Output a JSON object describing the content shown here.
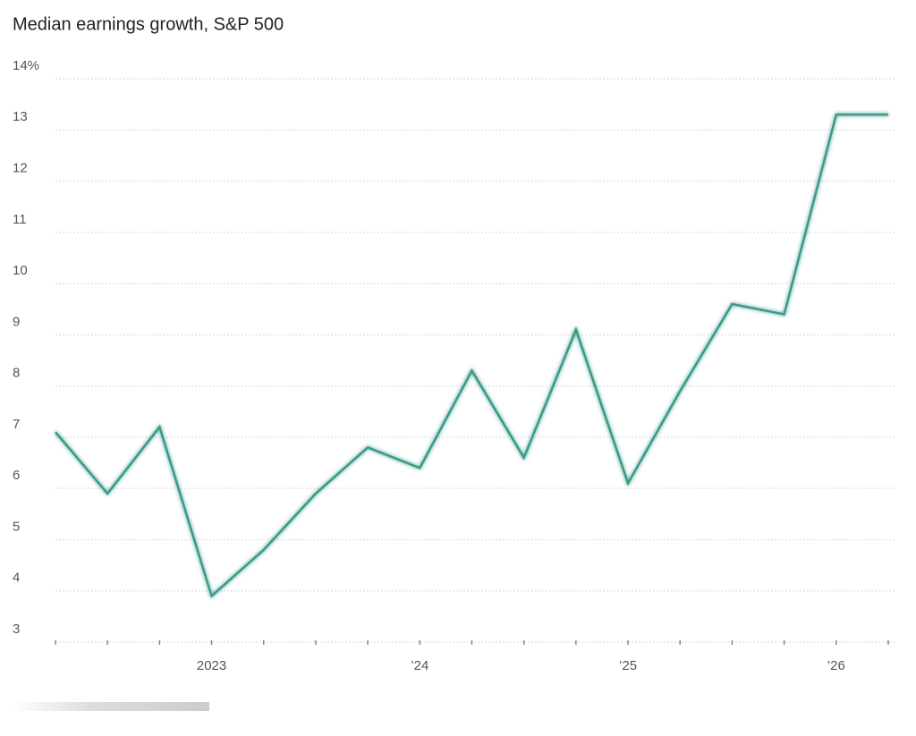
{
  "chart_data": {
    "type": "line",
    "title": "Median earnings growth, S&P 500",
    "categories": [
      null,
      null,
      null,
      "2023",
      null,
      null,
      null,
      "’24",
      null,
      null,
      null,
      "’25",
      null,
      null,
      null,
      "’26",
      null
    ],
    "values": [
      7.1,
      5.9,
      7.2,
      3.9,
      4.8,
      5.9,
      6.8,
      6.4,
      8.3,
      6.6,
      9.1,
      6.1,
      7.9,
      9.6,
      9.4,
      13.3,
      13.3
    ],
    "color": "#3a9a8a",
    "ylim": [
      3,
      14
    ],
    "yticks": [
      3,
      4,
      5,
      6,
      7,
      8,
      9,
      10,
      11,
      12,
      13,
      {
        "value": 14,
        "label": "14%"
      }
    ],
    "grid": true
  }
}
